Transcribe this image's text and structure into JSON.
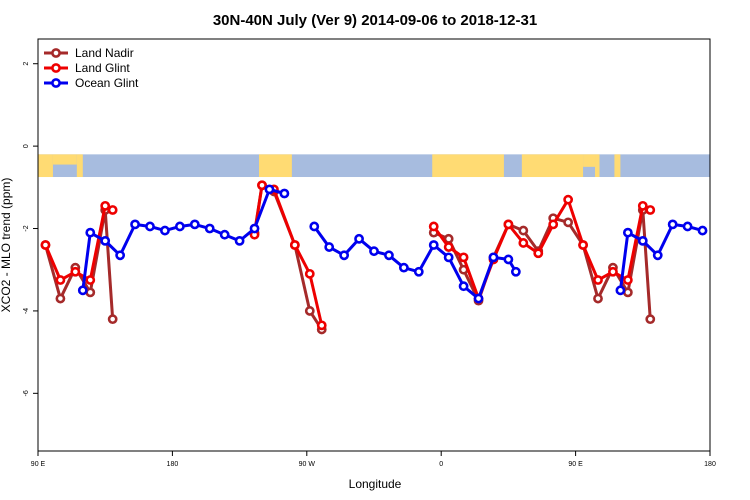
{
  "chart_data": {
    "type": "line",
    "title": "30N-40N July (Ver 9)   2014-09-06 to 2018-12-31",
    "xlabel": "Longitude",
    "ylabel": "XCO2 - MLO trend (ppm)",
    "xlim": [
      90,
      540
    ],
    "ylim": [
      -7.4,
      2.6
    ],
    "x_ticks": [
      {
        "value": 90,
        "label": "90 E"
      },
      {
        "value": 180,
        "label": "180"
      },
      {
        "value": 270,
        "label": "90 W"
      },
      {
        "value": 360,
        "label": "0"
      },
      {
        "value": 450,
        "label": "90 E"
      },
      {
        "value": 540,
        "label": "180"
      }
    ],
    "y_ticks": [
      {
        "value": 2,
        "label": "2"
      },
      {
        "value": 0,
        "label": "0"
      },
      {
        "value": -2,
        "label": "-2"
      },
      {
        "value": -4,
        "label": "-4"
      },
      {
        "value": -6,
        "label": "-6"
      }
    ],
    "grid": false,
    "legend_position": "top-left",
    "map_strip": {
      "y_top": -0.2,
      "y_bottom": -0.75,
      "ocean_color": "#a7bcdf",
      "land_color": "#ffdb73"
    },
    "series": [
      {
        "name": "Land Nadir",
        "color": "#a52a2a",
        "segments": [
          [
            [
              95,
              -2.4
            ],
            [
              105,
              -3.7
            ],
            [
              115,
              -2.95
            ],
            [
              125,
              -3.55
            ],
            [
              135,
              -1.55
            ],
            [
              140,
              -4.2
            ]
          ],
          [
            [
              235,
              -2.1
            ],
            [
              240,
              -0.95
            ],
            [
              248,
              -1.1
            ],
            [
              262,
              -2.4
            ],
            [
              272,
              -4.0
            ],
            [
              280,
              -4.45
            ]
          ],
          [
            [
              355,
              -2.1
            ],
            [
              365,
              -2.25
            ],
            [
              375,
              -3.0
            ],
            [
              385,
              -3.75
            ],
            [
              395,
              -2.7
            ],
            [
              405,
              -1.9
            ],
            [
              415,
              -2.05
            ],
            [
              425,
              -2.55
            ],
            [
              435,
              -1.75
            ],
            [
              445,
              -1.85
            ],
            [
              455,
              -2.4
            ],
            [
              465,
              -3.7
            ],
            [
              475,
              -2.95
            ],
            [
              485,
              -3.55
            ],
            [
              495,
              -1.55
            ],
            [
              500,
              -4.2
            ]
          ]
        ]
      },
      {
        "name": "Land Glint",
        "color": "#ee0000",
        "segments": [
          [
            [
              95,
              -2.4
            ],
            [
              105,
              -3.25
            ],
            [
              115,
              -3.05
            ],
            [
              125,
              -3.25
            ],
            [
              135,
              -1.45
            ],
            [
              140,
              -1.55
            ]
          ],
          [
            [
              235,
              -2.15
            ],
            [
              240,
              -0.95
            ],
            [
              248,
              -1.05
            ],
            [
              262,
              -2.4
            ],
            [
              272,
              -3.1
            ],
            [
              280,
              -4.35
            ]
          ],
          [
            [
              355,
              -1.95
            ],
            [
              365,
              -2.45
            ],
            [
              375,
              -2.7
            ],
            [
              385,
              -3.7
            ],
            [
              395,
              -2.75
            ],
            [
              405,
              -1.9
            ],
            [
              415,
              -2.35
            ],
            [
              425,
              -2.6
            ],
            [
              435,
              -1.9
            ],
            [
              445,
              -1.3
            ],
            [
              455,
              -2.4
            ],
            [
              465,
              -3.25
            ],
            [
              475,
              -3.05
            ],
            [
              485,
              -3.25
            ],
            [
              495,
              -1.45
            ],
            [
              500,
              -1.55
            ]
          ]
        ]
      },
      {
        "name": "Ocean Glint",
        "color": "#0000ee",
        "segments": [
          [
            [
              120,
              -3.5
            ],
            [
              125,
              -2.1
            ],
            [
              135,
              -2.3
            ],
            [
              145,
              -2.65
            ],
            [
              155,
              -1.9
            ],
            [
              165,
              -1.95
            ],
            [
              175,
              -2.05
            ],
            [
              185,
              -1.95
            ],
            [
              195,
              -1.9
            ],
            [
              205,
              -2.0
            ],
            [
              215,
              -2.15
            ],
            [
              225,
              -2.3
            ],
            [
              235,
              -2.0
            ],
            [
              245,
              -1.05
            ],
            [
              255,
              -1.15
            ]
          ],
          [
            [
              275,
              -1.95
            ],
            [
              285,
              -2.45
            ],
            [
              295,
              -2.65
            ],
            [
              305,
              -2.25
            ],
            [
              315,
              -2.55
            ],
            [
              325,
              -2.65
            ],
            [
              335,
              -2.95
            ],
            [
              345,
              -3.05
            ],
            [
              355,
              -2.4
            ],
            [
              365,
              -2.7
            ],
            [
              375,
              -3.4
            ],
            [
              385,
              -3.7
            ],
            [
              395,
              -2.7
            ],
            [
              405,
              -2.75
            ],
            [
              410,
              -3.05
            ]
          ]
        ]
      }
    ],
    "ocean_glint_right": [
      [
        480,
        -3.5
      ],
      [
        485,
        -2.1
      ],
      [
        495,
        -2.3
      ],
      [
        505,
        -2.65
      ],
      [
        515,
        -1.9
      ],
      [
        525,
        -1.95
      ],
      [
        535,
        -2.05
      ]
    ]
  }
}
